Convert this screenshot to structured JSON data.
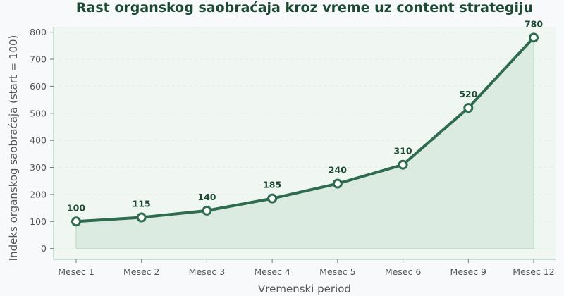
{
  "chart_data": {
    "type": "line",
    "title": "Rast organskog saobraćaja kroz vreme uz content strategiju",
    "xlabel": "Vremenski period",
    "ylabel": "Indeks organskog saobraćaja (start = 100)",
    "categories": [
      "Mesec 1",
      "Mesec 2",
      "Mesec 3",
      "Mesec 4",
      "Mesec 5",
      "Mesec 6",
      "Mesec 9",
      "Mesec 12"
    ],
    "values": [
      100,
      115,
      140,
      185,
      240,
      310,
      520,
      780
    ],
    "data_labels": [
      "100",
      "115",
      "140",
      "185",
      "240",
      "310",
      "520",
      "780"
    ],
    "ylim": [
      -40,
      820
    ],
    "yticks": [
      0,
      100,
      200,
      300,
      400,
      500,
      600,
      700,
      800
    ],
    "ytick_labels": [
      "0",
      "100",
      "200",
      "300",
      "400",
      "500",
      "600",
      "700",
      "800"
    ],
    "grid": true,
    "area_fill": true,
    "legend": "none",
    "colors": {
      "line": "#2e6b4f",
      "marker_fill": "#ffffff",
      "area": "#d4e7dc",
      "plot_bg": "#f0f7f2",
      "page_bg": "#f7f9fb",
      "title": "#1e4a33",
      "axis": "#a9d2b5"
    }
  }
}
